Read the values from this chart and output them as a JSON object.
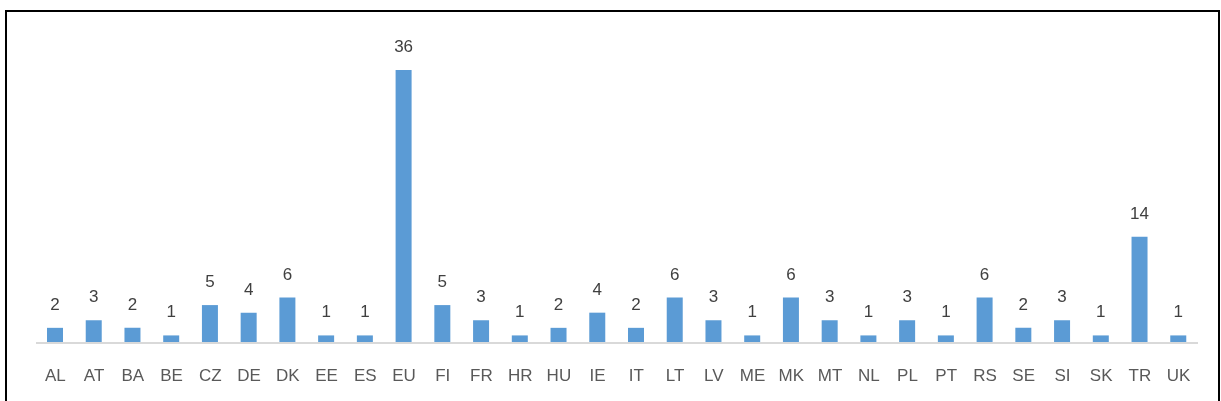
{
  "chart_data": {
    "type": "bar",
    "categories": [
      "AL",
      "AT",
      "BA",
      "BE",
      "CZ",
      "DE",
      "DK",
      "EE",
      "ES",
      "EU",
      "FI",
      "FR",
      "HR",
      "HU",
      "IE",
      "IT",
      "LT",
      "LV",
      "ME",
      "MK",
      "MT",
      "NL",
      "PL",
      "PT",
      "RS",
      "SE",
      "SI",
      "SK",
      "TR",
      "UK"
    ],
    "values": [
      2,
      3,
      2,
      1,
      5,
      4,
      6,
      1,
      1,
      36,
      5,
      3,
      1,
      2,
      4,
      2,
      6,
      3,
      1,
      6,
      3,
      1,
      3,
      1,
      6,
      2,
      3,
      1,
      14,
      1
    ],
    "color": "#5b9bd5",
    "data_labels": true
  }
}
